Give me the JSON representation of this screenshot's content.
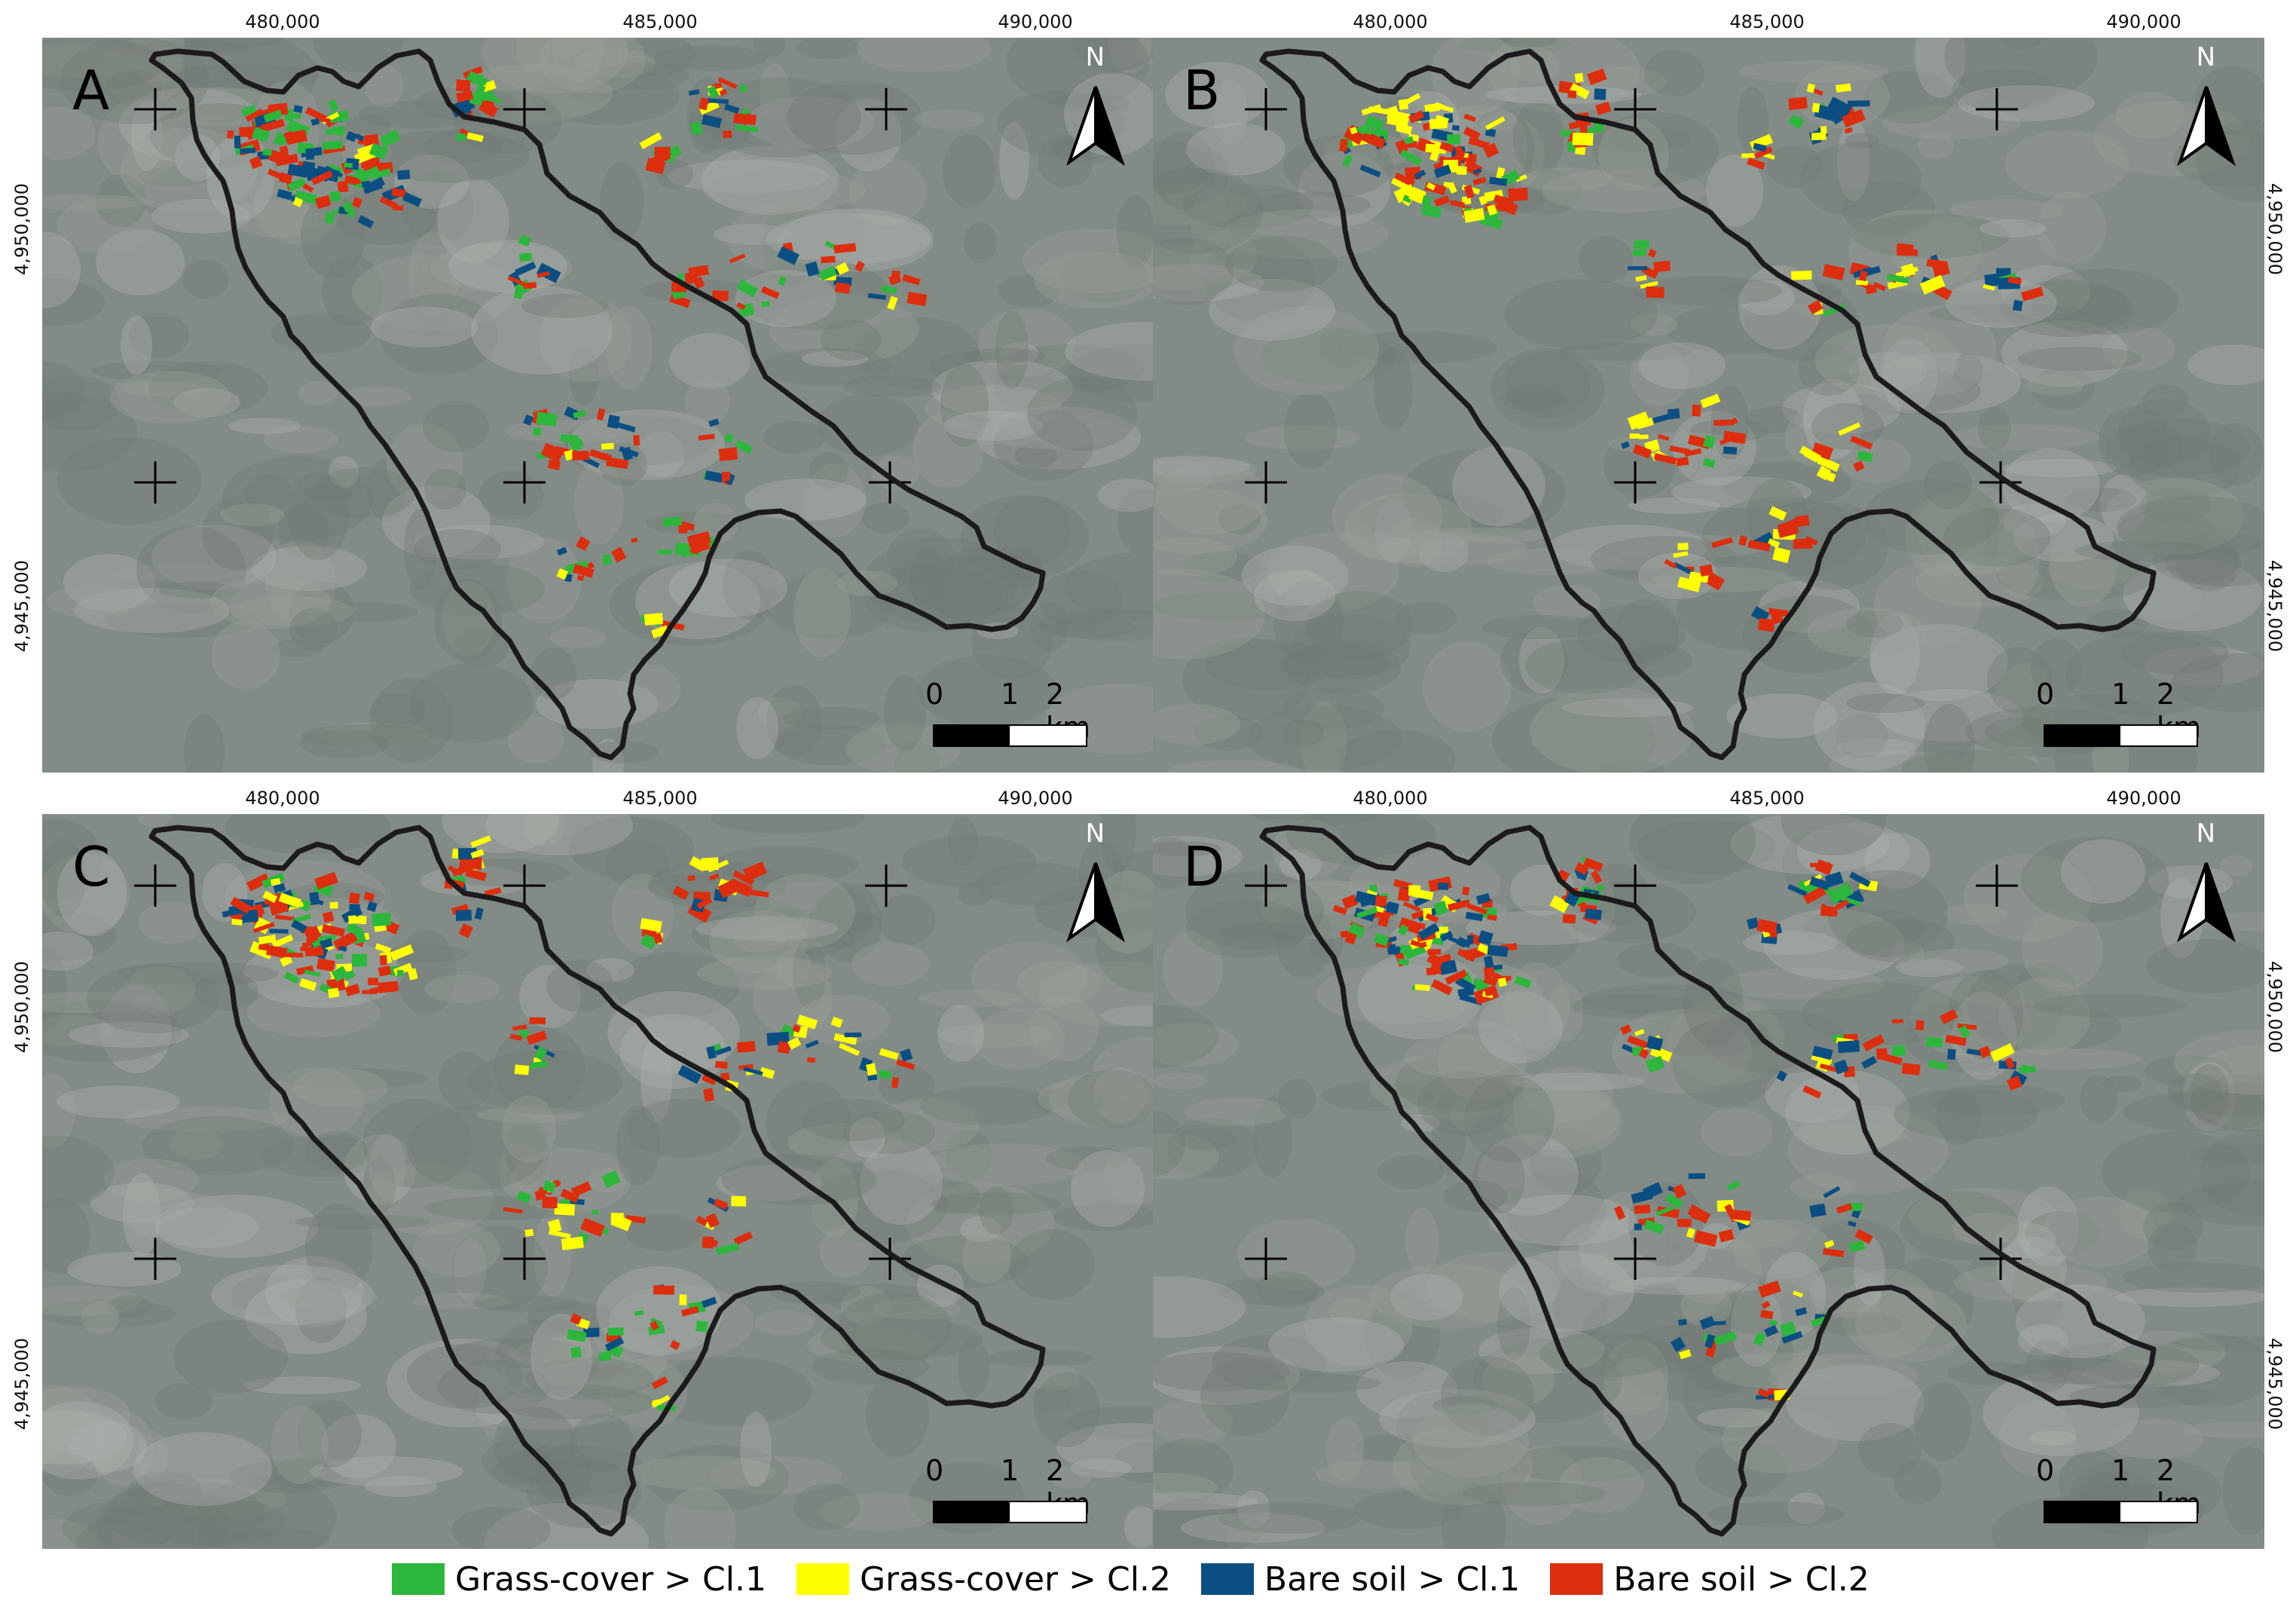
{
  "panels": [
    {
      "label": "A",
      "north": "N",
      "scale": [
        "0",
        "1",
        "2 km"
      ]
    },
    {
      "label": "B",
      "north": "N",
      "scale": [
        "0",
        "1",
        "2 km"
      ]
    },
    {
      "label": "C",
      "north": "N",
      "scale": [
        "0",
        "1",
        "2 km"
      ]
    },
    {
      "label": "D",
      "north": "N",
      "scale": [
        "0",
        "1",
        "2 km"
      ]
    }
  ],
  "x_ticks": [
    "480,000",
    "485,000",
    "490,000"
  ],
  "y_ticks": [
    "4,950,000",
    "4,945,000"
  ],
  "legend": [
    {
      "label": "Grass-cover > Cl.1",
      "color": "#2db63c"
    },
    {
      "label": "Grass-cover > Cl.2",
      "color": "#ffff00"
    },
    {
      "label": "Bare soil > Cl.1",
      "color": "#0b4e82"
    },
    {
      "label": "Bare soil > Cl.2",
      "color": "#dc2e0e"
    }
  ]
}
